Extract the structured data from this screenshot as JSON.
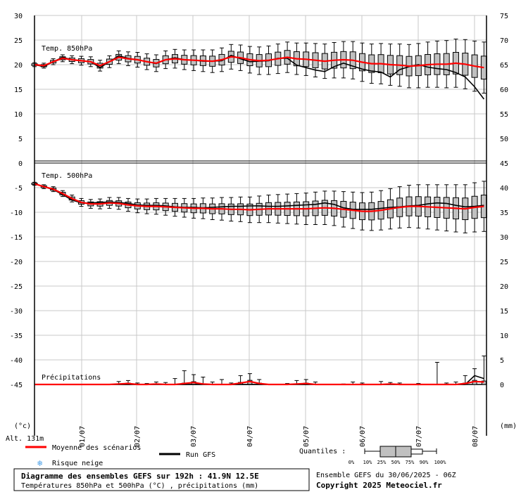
{
  "chart_data": {
    "type": "box",
    "left_axis_ticks": [
      "30",
      "25",
      "20",
      "15",
      "10",
      "5",
      "0",
      "-5",
      "-10",
      "-15",
      "-20",
      "-25",
      "-30",
      "-35",
      "-40",
      "-45"
    ],
    "right_axis_top_ticks": [
      "75",
      "70",
      "65",
      "60",
      "55",
      "50"
    ],
    "right_axis_bottom_ticks": [
      "45",
      "40",
      "35",
      "30",
      "25",
      "20",
      "15",
      "10",
      "5",
      "0"
    ],
    "left_unit": "(°c)",
    "right_unit": "(mm)",
    "altitude": "Alt. 131m",
    "dates": [
      "01/07",
      "02/07",
      "03/07",
      "04/07",
      "05/07",
      "06/07",
      "07/07",
      "08/07"
    ],
    "panels": {
      "t850": {
        "label": "Temp. 850hPa",
        "mean": [
          20,
          19.8,
          20.6,
          21.3,
          21,
          20.8,
          20.6,
          19.8,
          20.6,
          21.5,
          21.2,
          21,
          20.6,
          20.3,
          21,
          21.2,
          21,
          20.9,
          20.8,
          20.7,
          21,
          21.6,
          21.4,
          21,
          20.8,
          20.9,
          21.2,
          21.5,
          21.2,
          21.1,
          20.9,
          20.7,
          20.9,
          21,
          20.9,
          20.5,
          20.2,
          20.2,
          20,
          19.9,
          19.7,
          19.8,
          20,
          20.1,
          20.1,
          20.3,
          20.1,
          19.7,
          19.4
        ],
        "gfs": [
          20,
          19.6,
          20.6,
          21.5,
          21,
          20.8,
          20.6,
          19.4,
          20.6,
          21.8,
          21.3,
          21,
          20.6,
          20.2,
          21,
          21.4,
          21,
          20.9,
          20.7,
          20.7,
          20.8,
          21.9,
          21.2,
          20.6,
          20.7,
          20.8,
          21.3,
          21.3,
          19.9,
          19.4,
          18.9,
          18.6,
          19.6,
          20.3,
          19.7,
          19.1,
          18.7,
          18.5,
          17.5,
          19,
          19.6,
          20,
          19.5,
          19.2,
          19,
          18.4,
          17.5,
          15.5,
          13
        ],
        "whisker": [
          0.4,
          0.5,
          0.6,
          0.7,
          0.8,
          0.9,
          1,
          1.1,
          1.2,
          1.3,
          1.4,
          1.5,
          1.6,
          1.7,
          1.8,
          1.9,
          2,
          2.1,
          2.2,
          2.3,
          2.4,
          2.5,
          2.6,
          2.7,
          2.8,
          2.9,
          3,
          3.1,
          3.2,
          3.3,
          3.4,
          3.5,
          3.6,
          3.7,
          3.8,
          3.9,
          4,
          4.1,
          4.2,
          4.3,
          4.4,
          4.5,
          4.6,
          4.7,
          4.8,
          4.9,
          5,
          5.1,
          5.2
        ]
      },
      "t500": {
        "label": "Temp. 500hPa",
        "mean": [
          -4.2,
          -4.8,
          -5.3,
          -6.2,
          -7.2,
          -8,
          -8.3,
          -8.3,
          -8.1,
          -8.2,
          -8.5,
          -8.7,
          -8.8,
          -8.8,
          -8.9,
          -9,
          -9.1,
          -9.2,
          -9.2,
          -9.3,
          -9.3,
          -9.4,
          -9.4,
          -9.5,
          -9.4,
          -9.3,
          -9.3,
          -9.3,
          -9.3,
          -9.3,
          -9.2,
          -9.1,
          -9.2,
          -9.4,
          -9.6,
          -9.8,
          -9.8,
          -9.6,
          -9.3,
          -9,
          -8.8,
          -8.8,
          -8.9,
          -9,
          -9.1,
          -9.2,
          -9.3,
          -9,
          -8.8
        ],
        "gfs": [
          -4.2,
          -4.8,
          -5.4,
          -6.4,
          -7.5,
          -8.1,
          -8.1,
          -8,
          -7.9,
          -8,
          -8.2,
          -8.5,
          -8.6,
          -8.6,
          -8.7,
          -8.9,
          -9,
          -9,
          -9.1,
          -9,
          -8.9,
          -8.8,
          -8.8,
          -8.7,
          -8.7,
          -8.8,
          -8.8,
          -8.7,
          -8.6,
          -8.5,
          -8.4,
          -8.1,
          -8.4,
          -9.1,
          -9.4,
          -9.4,
          -9.4,
          -9.2,
          -9,
          -8.9,
          -8.7,
          -8.6,
          -8.3,
          -8.1,
          -8.2,
          -8.6,
          -8.9,
          -8.8,
          -8.6
        ],
        "whisker": [
          0.3,
          0.4,
          0.5,
          0.6,
          0.7,
          0.8,
          0.9,
          1,
          1.1,
          1.2,
          1.3,
          1.4,
          1.5,
          1.6,
          1.7,
          1.8,
          1.9,
          2,
          2.1,
          2.2,
          2.3,
          2.4,
          2.5,
          2.6,
          2.7,
          2.8,
          2.9,
          3,
          3.1,
          3.2,
          3.3,
          3.4,
          3.5,
          3.6,
          3.7,
          3.8,
          3.9,
          4,
          4.1,
          4.2,
          4.3,
          4.4,
          4.5,
          4.6,
          4.7,
          4.8,
          4.9,
          5,
          5.1
        ]
      },
      "precip": {
        "label": "Précipitations",
        "mean": [
          0,
          0,
          0,
          0,
          0,
          0,
          0,
          0,
          0,
          0.1,
          0.2,
          0,
          0,
          0.1,
          0,
          0,
          0.2,
          0.4,
          0.1,
          0,
          0,
          0,
          0.3,
          0.6,
          0.2,
          0,
          0,
          0,
          0.1,
          0.2,
          0,
          0,
          0,
          0,
          0,
          0,
          0,
          0,
          0.1,
          0,
          0,
          0,
          0,
          0,
          0,
          0,
          0.2,
          0.6,
          0.5
        ],
        "gfs": [
          0,
          0,
          0,
          0,
          0,
          0,
          0,
          0,
          0,
          0,
          0,
          0,
          0,
          0,
          0,
          0,
          0,
          0,
          0,
          0,
          0,
          0,
          0,
          0,
          0,
          0,
          0,
          0,
          0,
          0,
          0,
          0,
          0,
          0,
          0,
          0,
          0,
          0,
          0,
          0,
          0,
          0,
          0,
          0,
          0,
          0,
          0,
          1.8,
          1.2
        ],
        "high": [
          0,
          0,
          0,
          0,
          0,
          0,
          0,
          0,
          0,
          0.6,
          0.8,
          0.3,
          0.2,
          0.5,
          0.4,
          1.2,
          2.8,
          2,
          1.5,
          0.5,
          1,
          0.3,
          1.8,
          2.2,
          1,
          0,
          0,
          0.2,
          0.8,
          1,
          0.5,
          0,
          0,
          0.1,
          0.5,
          0.3,
          0,
          0.6,
          0.4,
          0.3,
          0,
          0.2,
          0,
          4.5,
          0.3,
          0.5,
          1.8,
          3.2,
          5.8
        ]
      }
    }
  },
  "legend": {
    "mean_label": "Moyenne des scénarios",
    "gfs_label": "Run GFS",
    "snow_label": "Risque neige",
    "quantiles_label": "Quantiles :",
    "quantile_ticks": [
      "0%",
      "10%",
      "25%",
      "50%",
      "75%",
      "90%",
      "100%"
    ]
  },
  "colors": {
    "mean": "#ff0000",
    "gfs": "#000000",
    "box": "#c0c0c0",
    "grid": "#c8c8c8",
    "snow": "#4aa0e8"
  },
  "footer": {
    "title": "Diagramme des ensembles GEFS sur 192h : 41.9N 12.5E",
    "subtitle": "Températures 850hPa et 500hPa (°C) , précipitations (mm)",
    "run": "Ensemble GEFS du 30/06/2025 - 06Z",
    "copyright": "Copyright 2025 Meteociel.fr"
  }
}
